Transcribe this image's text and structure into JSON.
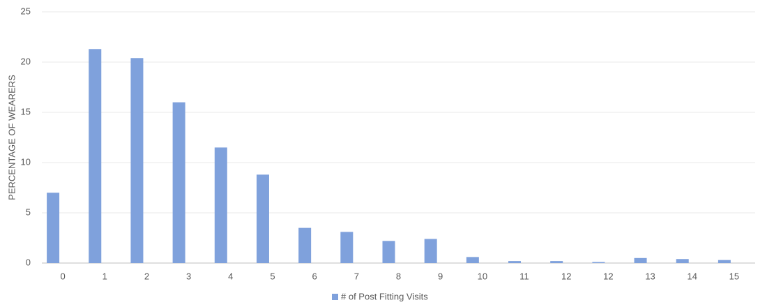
{
  "chart_data": {
    "type": "bar",
    "y_label": "PERCENTAGE OF WEARERS",
    "categories": [
      "0",
      "1",
      "2",
      "3",
      "4",
      "5",
      "6",
      "7",
      "8",
      "9",
      "10",
      "11",
      "12",
      "12",
      "13",
      "14",
      "15"
    ],
    "series": [
      {
        "name": "# of Post Fitting Visits",
        "color": "#7fa1dc",
        "values": [
          7.0,
          21.3,
          20.4,
          16.0,
          11.5,
          8.8,
          3.5,
          3.1,
          2.2,
          2.4,
          0.6,
          0.2,
          0.2,
          0.1,
          0.5,
          0.4,
          0.3
        ]
      }
    ],
    "ylim": [
      0,
      25
    ],
    "yticks": [
      0,
      5,
      10,
      15,
      20,
      25
    ],
    "grid": true,
    "legend": "bottom"
  }
}
